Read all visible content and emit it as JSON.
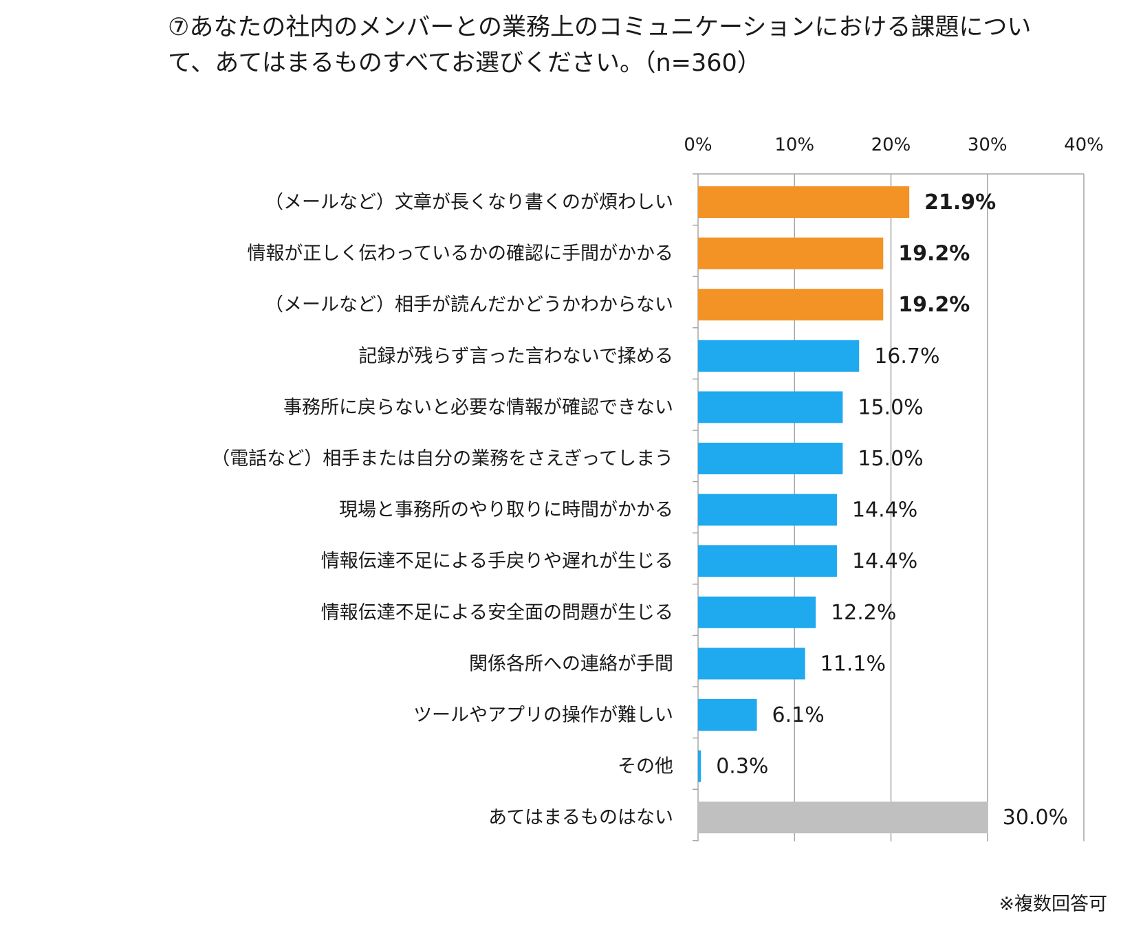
{
  "title_lines": [
    "⑦あなたの社内のメンバーとの業務上のコミュニケーションにおける課題につい",
    "て、あてはまるものすべてお選びください。（n=360）"
  ],
  "footnote": "※複数回答可",
  "colors": {
    "highlight": "#F39325",
    "normal": "#1FA9EE",
    "other": "#C0C0C0",
    "grid": "#A6A6A6"
  },
  "chart_data": {
    "type": "bar",
    "orientation": "horizontal",
    "title": "⑦あなたの社内のメンバーとの業務上のコミュニケーションにおける課題について、あてはまるものすべてお選びください。（n=360）",
    "xlim": [
      0,
      40
    ],
    "ticks": [
      0,
      10,
      20,
      30,
      40
    ],
    "tick_labels": [
      "0%",
      "10%",
      "20%",
      "30%",
      "40%"
    ],
    "categories": [
      "（メールなど）文章が長くなり書くのが煩わしい",
      "情報が正しく伝わっているかの確認に手間がかかる",
      "（メールなど）相手が読んだかどうかわからない",
      "記録が残らず言った言わないで揉める",
      "事務所に戻らないと必要な情報が確認できない",
      "（電話など）相手または自分の業務をさえぎってしまう",
      "現場と事務所のやり取りに時間がかかる",
      "情報伝達不足による手戻りや遅れが生じる",
      "情報伝達不足による安全面の問題が生じる",
      "関係各所への連絡が手間",
      "ツールやアプリの操作が難しい",
      "その他",
      "あてはまるものはない"
    ],
    "values": [
      21.9,
      19.2,
      19.2,
      16.7,
      15.0,
      15.0,
      14.4,
      14.4,
      12.2,
      11.1,
      6.1,
      0.3,
      30.0
    ],
    "value_labels": [
      "21.9%",
      "19.2%",
      "19.2%",
      "16.7%",
      "15.0%",
      "15.0%",
      "14.4%",
      "14.4%",
      "12.2%",
      "11.1%",
      "6.1%",
      "0.3%",
      "30.0%"
    ],
    "groups": [
      "highlight",
      "highlight",
      "highlight",
      "normal",
      "normal",
      "normal",
      "normal",
      "normal",
      "normal",
      "normal",
      "normal",
      "normal",
      "other"
    ],
    "bold_labels": [
      true,
      true,
      true,
      false,
      false,
      false,
      false,
      false,
      false,
      false,
      false,
      false,
      false
    ],
    "grid": true,
    "axis_position": "top"
  }
}
